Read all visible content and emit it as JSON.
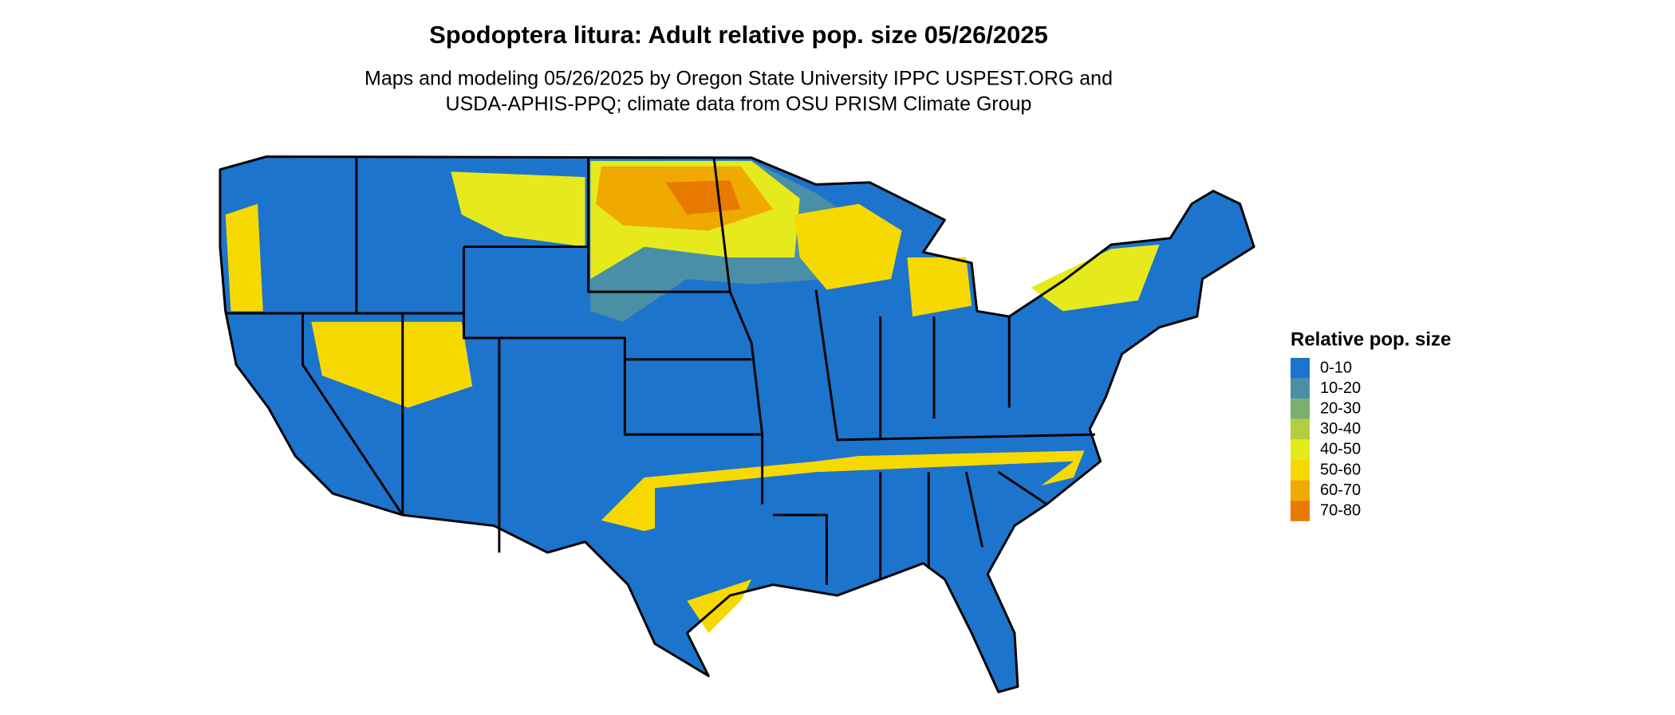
{
  "header": {
    "title": "Spodoptera litura: Adult relative pop. size 05/26/2025",
    "subtitle": [
      "Maps and modeling 05/26/2025 by Oregon State University IPPC USPEST.ORG and",
      "USDA-APHIS-PPQ; climate data from OSU PRISM Climate Group"
    ]
  },
  "legend": {
    "title": "Relative pop. size",
    "items": [
      {
        "label": "0-10",
        "color": "#1c74cc"
      },
      {
        "label": "10-20",
        "color": "#4a8fa6"
      },
      {
        "label": "20-30",
        "color": "#7cae6e"
      },
      {
        "label": "30-40",
        "color": "#b2cf3e"
      },
      {
        "label": "40-50",
        "color": "#e6ea1c"
      },
      {
        "label": "50-60",
        "color": "#f6d900"
      },
      {
        "label": "60-70",
        "color": "#f0a900"
      },
      {
        "label": "70-80",
        "color": "#e87a00"
      }
    ]
  }
}
